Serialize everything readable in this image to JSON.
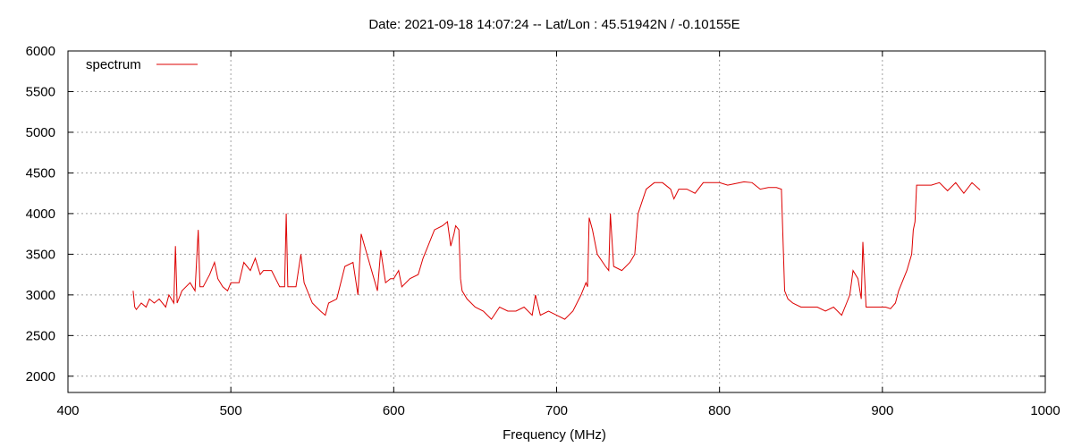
{
  "chart_data": {
    "type": "line",
    "title": "Date: 2021-09-18 14:07:24  --  Lat/Lon : 45.51942N / -0.10155E",
    "xlabel": "Frequency (MHz)",
    "ylabel": "",
    "xlim": [
      400,
      1000
    ],
    "ylim": [
      1800,
      6000
    ],
    "x_ticks": [
      400,
      500,
      600,
      700,
      800,
      900,
      1000
    ],
    "y_ticks": [
      2000,
      2500,
      3000,
      3500,
      4000,
      4500,
      5000,
      5500,
      6000
    ],
    "grid": true,
    "legend_position": "top-left",
    "colors": {
      "series": "#dd0000"
    },
    "series": [
      {
        "name": "spectrum",
        "x": [
          440,
          441,
          442,
          445,
          448,
          450,
          453,
          456,
          460,
          462,
          465,
          466,
          467,
          470,
          475,
          478,
          480,
          481,
          483,
          487,
          490,
          492,
          495,
          498,
          500,
          505,
          508,
          512,
          515,
          518,
          520,
          525,
          530,
          533,
          534,
          535,
          540,
          543,
          545,
          550,
          555,
          558,
          560,
          565,
          570,
          575,
          578,
          580,
          585,
          590,
          592,
          595,
          598,
          600,
          603,
          605,
          610,
          615,
          618,
          620,
          625,
          630,
          633,
          635,
          637,
          638,
          640,
          641,
          642,
          645,
          650,
          655,
          660,
          665,
          670,
          675,
          680,
          685,
          687,
          690,
          695,
          700,
          705,
          710,
          715,
          718,
          719,
          720,
          722,
          725,
          730,
          732,
          733,
          735,
          740,
          745,
          748,
          750,
          755,
          760,
          765,
          770,
          772,
          775,
          780,
          785,
          790,
          795,
          800,
          805,
          810,
          815,
          820,
          825,
          830,
          835,
          838,
          840,
          842,
          845,
          850,
          855,
          860,
          865,
          870,
          875,
          878,
          880,
          882,
          885,
          887,
          888,
          890,
          895,
          900,
          902,
          905,
          908,
          910,
          915,
          918,
          919,
          920,
          921,
          925,
          930,
          935,
          940,
          945,
          950,
          955,
          960
        ],
        "values": [
          3050,
          2850,
          2820,
          2900,
          2850,
          2950,
          2900,
          2950,
          2850,
          3000,
          2900,
          3600,
          2900,
          3050,
          3150,
          3050,
          3800,
          3100,
          3100,
          3250,
          3400,
          3200,
          3100,
          3050,
          3150,
          3150,
          3400,
          3300,
          3450,
          3250,
          3300,
          3300,
          3100,
          3100,
          4000,
          3100,
          3100,
          3500,
          3150,
          2900,
          2800,
          2750,
          2900,
          2950,
          3350,
          3400,
          3000,
          3750,
          3400,
          3050,
          3550,
          3150,
          3200,
          3200,
          3300,
          3100,
          3200,
          3250,
          3450,
          3550,
          3800,
          3850,
          3900,
          3600,
          3750,
          3850,
          3800,
          3200,
          3050,
          2950,
          2850,
          2800,
          2700,
          2850,
          2800,
          2800,
          2850,
          2750,
          3000,
          2750,
          2800,
          2750,
          2700,
          2800,
          3000,
          3150,
          3100,
          3950,
          3800,
          3500,
          3350,
          3300,
          4000,
          3350,
          3300,
          3400,
          3500,
          4000,
          4300,
          4380,
          4380,
          4300,
          4180,
          4300,
          4300,
          4250,
          4380,
          4380,
          4380,
          4350,
          4370,
          4390,
          4380,
          4300,
          4320,
          4320,
          4300,
          3050,
          2950,
          2900,
          2850,
          2850,
          2850,
          2800,
          2850,
          2750,
          2900,
          3000,
          3300,
          3200,
          2950,
          3650,
          2850,
          2850,
          2850,
          2850,
          2830,
          2900,
          3050,
          3300,
          3500,
          3800,
          3900,
          4350,
          4350,
          4350,
          4380,
          4280,
          4380,
          4250,
          4380,
          4290
        ]
      }
    ]
  }
}
